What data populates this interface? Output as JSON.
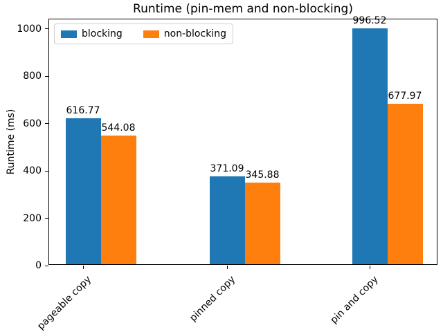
{
  "chart_data": {
    "type": "bar",
    "title": "Runtime (pin-mem and non-blocking)",
    "ylabel": "Runtime (ms)",
    "xlabel": "",
    "categories": [
      "pageable copy",
      "pinned copy",
      "pin and copy"
    ],
    "series": [
      {
        "name": "blocking",
        "color": "#1f77b4",
        "values": [
          616.77,
          371.09,
          996.52
        ]
      },
      {
        "name": "non-blocking",
        "color": "#ff7f0e",
        "values": [
          544.08,
          345.88,
          677.97
        ]
      }
    ],
    "bar_value_labels": [
      [
        "616.77",
        "371.09",
        "996.52"
      ],
      [
        "544.08",
        "345.88",
        "677.97"
      ]
    ],
    "ylim": [
      0,
      1040
    ],
    "yticks": [
      0,
      200,
      400,
      600,
      800,
      1000
    ],
    "grid": false,
    "legend_position": "upper left",
    "x_tick_rotation": 45,
    "colors": {
      "axis": "#000000",
      "text": "#000000",
      "legend_border": "#cccccc",
      "background": "#ffffff"
    }
  }
}
